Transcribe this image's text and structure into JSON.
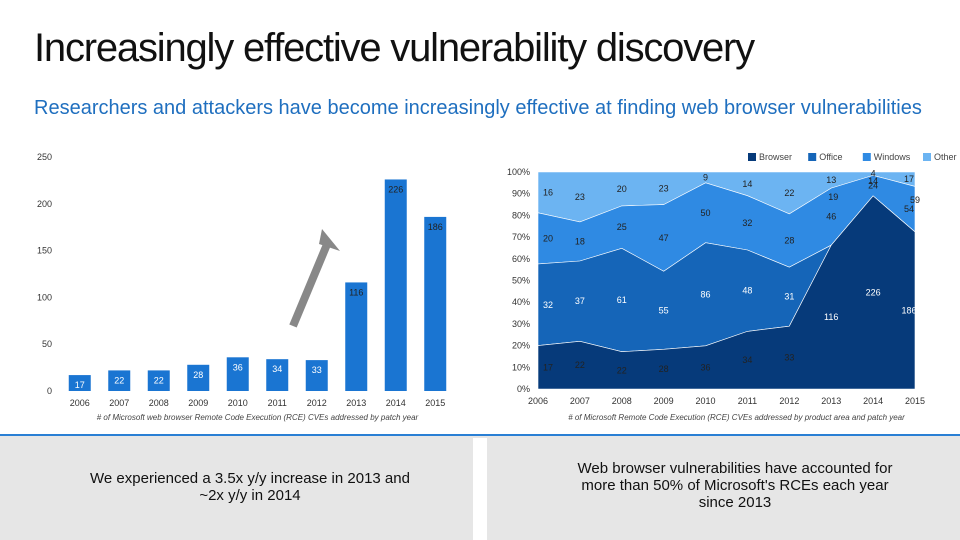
{
  "title": "Increasingly effective vulnerability discovery",
  "subtitle": "Researchers and attackers have become increasingly effective at finding web browser vulnerabilities",
  "notes": {
    "left": "We experienced a 3.5x y/y increase in 2013 and ~2x y/y in 2014",
    "right": "Web browser vulnerabilities have accounted for more than 50% of Microsoft's RCEs each year since 2013"
  },
  "colors": {
    "browser": "#063a7a",
    "office": "#1565b8",
    "windows": "#2f8ae3",
    "other": "#6cb4f2",
    "bar": "#1a75d2",
    "arrow": "#888888",
    "accent": "#1f6fbf"
  },
  "chart_data": [
    {
      "type": "bar",
      "caption": "# of Microsoft web browser Remote Code Execution (RCE) CVEs addressed by patch year",
      "categories": [
        "2006",
        "2007",
        "2008",
        "2009",
        "2010",
        "2011",
        "2012",
        "2013",
        "2014",
        "2015"
      ],
      "values": [
        17,
        22,
        22,
        28,
        36,
        34,
        33,
        116,
        226,
        186
      ],
      "ylim": [
        0,
        250
      ],
      "yticks": [
        0,
        50,
        100,
        150,
        200,
        250
      ],
      "data_labels": [
        "17",
        "22",
        "22",
        "28",
        "36",
        "34",
        "33",
        "116",
        "226",
        "186"
      ],
      "annotation": "growth-arrow"
    },
    {
      "type": "area",
      "stacked": "percent",
      "caption": "# of Microsoft Remote Code Execution (RCE) CVEs addressed by product area and patch year",
      "x": [
        "2006",
        "2007",
        "2008",
        "2009",
        "2010",
        "2011",
        "2012",
        "2013",
        "2014",
        "2015"
      ],
      "ylim": [
        0,
        100
      ],
      "yticks": [
        "0%",
        "10%",
        "20%",
        "30%",
        "40%",
        "50%",
        "60%",
        "70%",
        "80%",
        "90%",
        "100%"
      ],
      "legend": [
        "Browser",
        "Office",
        "Windows",
        "Other"
      ],
      "legend_position": "top-right",
      "series": [
        {
          "name": "Browser",
          "values": [
            17,
            22,
            22,
            28,
            36,
            34,
            33,
            116,
            226,
            186
          ],
          "labels": [
            "17",
            "22",
            "22",
            "28",
            "36",
            "34",
            "33",
            "116",
            "226",
            "186"
          ]
        },
        {
          "name": "Office",
          "values": [
            32,
            37,
            61,
            55,
            86,
            48,
            31,
            null,
            null,
            null
          ],
          "labels": [
            "32",
            "37",
            "61",
            "55",
            "86",
            "48",
            "31",
            "",
            "",
            ""
          ]
        },
        {
          "name": "Windows",
          "values": [
            20,
            18,
            25,
            47,
            50,
            32,
            28,
            46,
            24,
            54
          ],
          "labels": [
            "20",
            "18",
            "25",
            "47",
            "50",
            "32",
            "28",
            "46",
            "24",
            "54"
          ]
        },
        {
          "name": "Other",
          "values": [
            16,
            23,
            20,
            23,
            9,
            14,
            22,
            13,
            4,
            17
          ],
          "labels": [
            "16",
            "23",
            "20",
            "23",
            "9",
            "14",
            "22",
            "13",
            "4",
            "17"
          ]
        }
      ],
      "extra_labels": [
        "19",
        "14",
        "59"
      ]
    }
  ]
}
